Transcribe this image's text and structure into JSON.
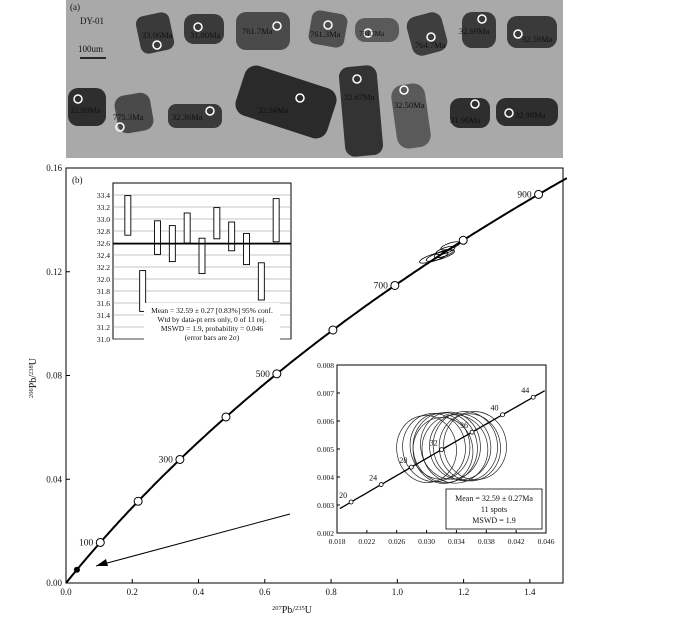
{
  "panel_a": {
    "label": "(a)",
    "sample": "DY-01",
    "scale_bar": "100um",
    "grains": [
      {
        "age": "33.06Ma"
      },
      {
        "age": "31.80Ma"
      },
      {
        "age": "761.7Ma"
      },
      {
        "age": "761.3Ma"
      },
      {
        "age": "784.3Ma"
      },
      {
        "age": "764.7Ma"
      },
      {
        "age": "32.69Ma"
      },
      {
        "age": "32.59Ma"
      },
      {
        "age": "32.89Ma"
      },
      {
        "age": "775.3Ma"
      },
      {
        "age": "32.36Ma"
      },
      {
        "age": "32.94Ma"
      },
      {
        "age": "32.67Ma"
      },
      {
        "age": "32.50Ma"
      },
      {
        "age": "31.96Ma"
      },
      {
        "age": "32.98Ma"
      }
    ]
  },
  "panel_b": {
    "label": "(b)",
    "xlabel_parts": [
      "207",
      "Pb/",
      "235",
      "U"
    ],
    "ylabel_parts": [
      "206",
      "Pb/",
      "238",
      "U"
    ]
  },
  "inset_wm": {
    "note_lines": [
      "Mean = 32.59 ± 0.27 [0.83%] 95% conf.",
      "Wtd by data-pt errs only, 0 of 11 rej.",
      "MSWD = 1.9, probability = 0.046",
      "(error bars are 2σ)"
    ]
  },
  "inset_concordia": {
    "note_lines": [
      "Mean = 32.59 ± 0.27Ma",
      "11 spots",
      "MSWD = 1.9"
    ]
  },
  "colors": {
    "panel_a_bg": "#a9a9a9",
    "grain_dark": "#3a3a3a",
    "line": "#000000"
  },
  "chart_data": [
    {
      "type": "scatter",
      "name": "main-concordia",
      "xlim": [
        0,
        1.5
      ],
      "ylim": [
        0,
        0.16
      ],
      "x_ticks": [
        0.0,
        0.2,
        0.4,
        0.6,
        0.8,
        1.0,
        1.2,
        1.4
      ],
      "y_ticks": [
        0.0,
        0.04,
        0.08,
        0.12,
        0.16
      ],
      "x_tick_labels": [
        "0.0",
        "0.2",
        "0.4",
        "0.6",
        "0.8",
        "1.0",
        "1.2",
        "1.4"
      ],
      "y_tick_labels": [
        "0.00",
        "0.04",
        "0.08",
        "0.12",
        "0.16"
      ],
      "concordia_labels": [
        {
          "age": 100,
          "text": "100"
        },
        {
          "age": 300,
          "text": "300"
        },
        {
          "age": 500,
          "text": "500"
        },
        {
          "age": 700,
          "text": "700"
        },
        {
          "age": 900,
          "text": "900"
        }
      ],
      "concordia_markers_ma": [
        100,
        200,
        300,
        400,
        500,
        600,
        700,
        800,
        900
      ],
      "data_ellipses": [
        {
          "x": 1.11,
          "y": 0.1255,
          "rx": 0.045,
          "ry": 0.0013
        },
        {
          "x": 1.13,
          "y": 0.1262,
          "rx": 0.045,
          "ry": 0.0013
        },
        {
          "x": 1.145,
          "y": 0.1282,
          "rx": 0.03,
          "ry": 0.0011
        },
        {
          "x": 1.16,
          "y": 0.13,
          "rx": 0.03,
          "ry": 0.0011
        },
        {
          "x": 1.14,
          "y": 0.127,
          "rx": 0.03,
          "ry": 0.0011
        }
      ],
      "young_cluster": {
        "x": 0.033,
        "y": 0.0051
      }
    },
    {
      "type": "bar",
      "name": "weighted-mean",
      "ylim": [
        31.0,
        33.6
      ],
      "y_ticks": [
        31.0,
        31.2,
        31.4,
        31.6,
        31.8,
        32.0,
        32.2,
        32.4,
        32.6,
        32.8,
        33.0,
        33.2,
        33.4
      ],
      "y_tick_labels": [
        "31.0",
        "31.2",
        "31.4",
        "31.6",
        "31.8",
        "32.0",
        "32.2",
        "32.4",
        "32.6",
        "32.8",
        "33.0",
        "33.2",
        "33.4"
      ],
      "mean": 32.59,
      "boxes": [
        {
          "low": 32.73,
          "high": 33.39
        },
        {
          "low": 31.46,
          "high": 32.14
        },
        {
          "low": 32.41,
          "high": 32.97
        },
        {
          "low": 32.29,
          "high": 32.89
        },
        {
          "low": 32.6,
          "high": 33.1
        },
        {
          "low": 32.09,
          "high": 32.68
        },
        {
          "low": 32.67,
          "high": 33.19
        },
        {
          "low": 32.47,
          "high": 32.95
        },
        {
          "low": 32.24,
          "high": 32.76
        },
        {
          "low": 31.65,
          "high": 32.27
        },
        {
          "low": 32.62,
          "high": 33.34
        }
      ]
    },
    {
      "type": "scatter",
      "name": "zoomed-concordia",
      "xlim": [
        0.018,
        0.046
      ],
      "ylim": [
        0.002,
        0.008
      ],
      "x_ticks": [
        0.018,
        0.022,
        0.026,
        0.03,
        0.034,
        0.038,
        0.042,
        0.046
      ],
      "y_ticks": [
        0.002,
        0.003,
        0.004,
        0.005,
        0.006,
        0.007,
        0.008
      ],
      "x_tick_labels": [
        "0.018",
        "0.022",
        "0.026",
        "0.030",
        "0.034",
        "0.038",
        "0.042",
        "0.046"
      ],
      "y_tick_labels": [
        "0.002",
        "0.003",
        "0.004",
        "0.005",
        "0.006",
        "0.007",
        "0.008"
      ],
      "concordia_labels": [
        {
          "age": 20,
          "text": "20"
        },
        {
          "age": 24,
          "text": "24"
        },
        {
          "age": 28,
          "text": "28"
        },
        {
          "age": 32,
          "text": "32"
        },
        {
          "age": 36,
          "text": "36"
        },
        {
          "age": 40,
          "text": "40"
        },
        {
          "age": 44,
          "text": "44"
        }
      ],
      "data_ellipses": [
        {
          "x": 0.03,
          "y": 0.005,
          "rx": 0.004,
          "ry": 0.0012
        },
        {
          "x": 0.031,
          "y": 0.00505,
          "rx": 0.0042,
          "ry": 0.00122
        },
        {
          "x": 0.0318,
          "y": 0.0051,
          "rx": 0.004,
          "ry": 0.00118
        },
        {
          "x": 0.0325,
          "y": 0.00505,
          "rx": 0.0043,
          "ry": 0.00125
        },
        {
          "x": 0.0332,
          "y": 0.00512,
          "rx": 0.004,
          "ry": 0.0012
        },
        {
          "x": 0.0338,
          "y": 0.005,
          "rx": 0.0044,
          "ry": 0.00122
        },
        {
          "x": 0.0345,
          "y": 0.00508,
          "rx": 0.0041,
          "ry": 0.00118
        },
        {
          "x": 0.0352,
          "y": 0.0051,
          "rx": 0.0043,
          "ry": 0.00124
        },
        {
          "x": 0.0358,
          "y": 0.00506,
          "rx": 0.0041,
          "ry": 0.0012
        },
        {
          "x": 0.0365,
          "y": 0.00512,
          "rx": 0.0042,
          "ry": 0.00122
        },
        {
          "x": 0.0322,
          "y": 0.00495,
          "rx": 0.004,
          "ry": 0.00118
        }
      ]
    }
  ]
}
